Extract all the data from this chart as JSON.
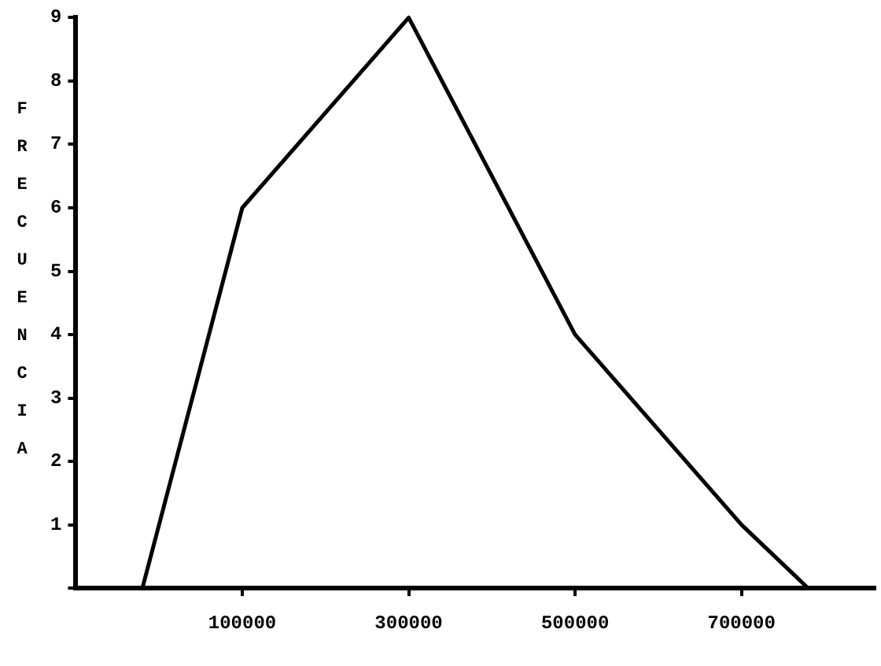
{
  "chart_data": {
    "type": "line",
    "ylabel": "FRECUENCIA",
    "series": [
      {
        "color": "#000000",
        "x": [
          -20000,
          100000,
          300000,
          500000,
          700000,
          780000
        ],
        "values": [
          0,
          6,
          9,
          4,
          1,
          0
        ]
      }
    ],
    "xlim": [
      -100000,
      860000
    ],
    "xticks": [
      100000,
      300000,
      500000,
      700000
    ],
    "ylim": [
      0,
      9
    ],
    "yticks": [
      {
        "value": 0,
        "label": null
      },
      1,
      2,
      3,
      4,
      5,
      6,
      7,
      8,
      9
    ],
    "grid": false,
    "legend": false,
    "marker": "none",
    "line_style": "solid"
  }
}
